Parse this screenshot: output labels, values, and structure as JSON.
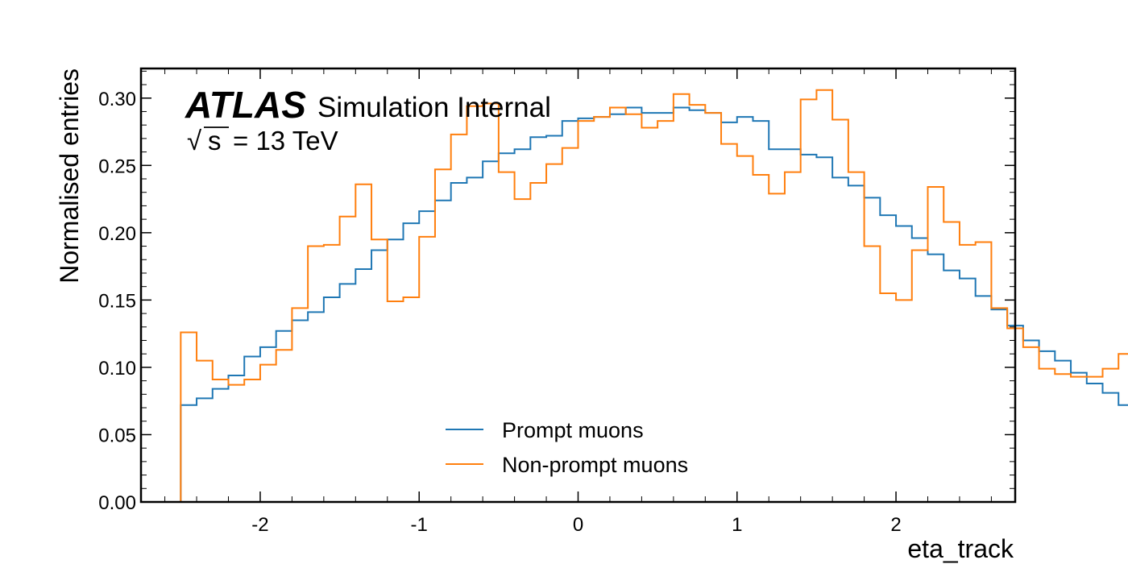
{
  "chart_data": {
    "type": "histogram",
    "xlabel": "eta_track",
    "ylabel": "Normalised entries",
    "xlim": [
      -2.75,
      2.75
    ],
    "ylim": [
      0.0,
      0.322
    ],
    "x_ticks": [
      -2,
      -1,
      0,
      1,
      2
    ],
    "x_tick_labels": [
      "-2",
      "-1",
      "0",
      "1",
      "2"
    ],
    "y_ticks": [
      0.0,
      0.05,
      0.1,
      0.15,
      0.2,
      0.25,
      0.3
    ],
    "y_tick_labels": [
      "0.00",
      "0.05",
      "0.10",
      "0.15",
      "0.20",
      "0.25",
      "0.30"
    ],
    "bin_edges_start": -2.5,
    "bin_width": 0.1,
    "series": [
      {
        "name": "Prompt muons",
        "color": "#1f77b4",
        "values": [
          0.072,
          0.077,
          0.084,
          0.094,
          0.108,
          0.115,
          0.127,
          0.135,
          0.141,
          0.152,
          0.162,
          0.173,
          0.187,
          0.195,
          0.207,
          0.216,
          0.224,
          0.237,
          0.241,
          0.253,
          0.259,
          0.262,
          0.271,
          0.272,
          0.283,
          0.285,
          0.286,
          0.288,
          0.293,
          0.289,
          0.289,
          0.293,
          0.291,
          0.289,
          0.282,
          0.286,
          0.283,
          0.262,
          0.262,
          0.258,
          0.256,
          0.241,
          0.235,
          0.226,
          0.213,
          0.205,
          0.196,
          0.184,
          0.172,
          0.166,
          0.153,
          0.143,
          0.131,
          0.12,
          0.112,
          0.105,
          0.096,
          0.088,
          0.081,
          0.072
        ]
      },
      {
        "name": "Non-prompt muons",
        "color": "#ff7f0e",
        "values": [
          0.126,
          0.105,
          0.091,
          0.087,
          0.091,
          0.102,
          0.113,
          0.144,
          0.19,
          0.191,
          0.212,
          0.236,
          0.195,
          0.149,
          0.152,
          0.197,
          0.247,
          0.273,
          0.294,
          0.296,
          0.245,
          0.225,
          0.237,
          0.251,
          0.263,
          0.283,
          0.286,
          0.293,
          0.288,
          0.278,
          0.283,
          0.303,
          0.295,
          0.289,
          0.266,
          0.257,
          0.243,
          0.229,
          0.245,
          0.299,
          0.306,
          0.284,
          0.245,
          0.19,
          0.155,
          0.15,
          0.187,
          0.234,
          0.208,
          0.191,
          0.193,
          0.144,
          0.129,
          0.115,
          0.099,
          0.095,
          0.093,
          0.093,
          0.099,
          0.11
        ]
      }
    ],
    "legend_position": "bottom-center",
    "annotation": {
      "experiment": "ATLAS",
      "label": "Simulation Internal",
      "sqrt_symbol": "√",
      "sqrt_arg": "s",
      "energy_text": "= 13 TeV"
    }
  }
}
